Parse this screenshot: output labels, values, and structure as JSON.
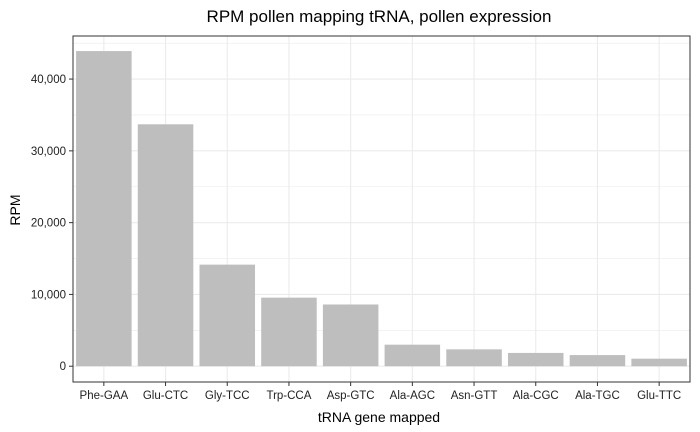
{
  "chart_data": {
    "type": "bar",
    "title": "RPM pollen mapping tRNA, pollen expression",
    "xlabel": "tRNA gene mapped",
    "ylabel": "RPM",
    "categories": [
      "Phe-GAA",
      "Glu-CTC",
      "Gly-TCC",
      "Trp-CCA",
      "Asp-GTC",
      "Ala-AGC",
      "Asn-GTT",
      "Ala-CGC",
      "Ala-TGC",
      "Glu-TTC"
    ],
    "values": [
      43900,
      33700,
      14150,
      9550,
      8600,
      3000,
      2350,
      1850,
      1550,
      1050
    ],
    "yticks": [
      0,
      10000,
      20000,
      30000,
      40000
    ],
    "ytick_labels": [
      "0",
      "10,000",
      "20,000",
      "30,000",
      "40,000"
    ],
    "ylim": [
      -2200,
      46000
    ],
    "grid": true,
    "bar_color": "#bebebe",
    "grid_color": "#ebebeb",
    "panel_border_color": "#333333"
  }
}
